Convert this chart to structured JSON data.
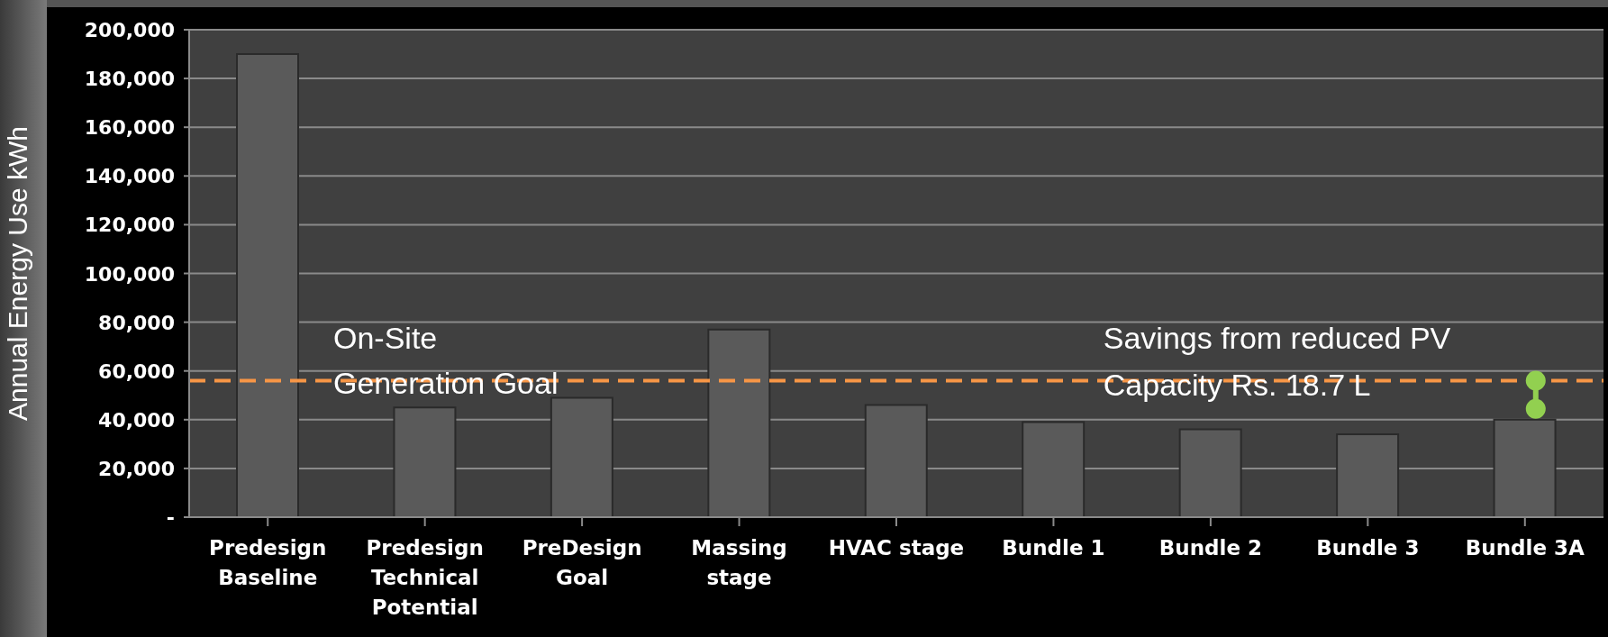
{
  "chart_data": {
    "type": "bar",
    "ylabel": "Annual Energy Use kWh",
    "categories": [
      "Predesign Baseline",
      "Predesign Technical Potential",
      "PreDesign Goal",
      "Massing stage",
      "HVAC stage",
      "Bundle 1",
      "Bundle 2",
      "Bundle 3",
      "Bundle 3A"
    ],
    "values": [
      190000,
      45000,
      49000,
      77000,
      46000,
      39000,
      36000,
      34000,
      40000
    ],
    "color": "#5a5a5a",
    "ylim": [
      0,
      200000
    ],
    "yticks": [
      {
        "value": 0,
        "label": "-"
      },
      {
        "value": 20000,
        "label": "20,000"
      },
      {
        "value": 40000,
        "label": "40,000"
      },
      {
        "value": 60000,
        "label": "60,000"
      },
      {
        "value": 80000,
        "label": "80,000"
      },
      {
        "value": 100000,
        "label": "100,000"
      },
      {
        "value": 120000,
        "label": "120,000"
      },
      {
        "value": 140000,
        "label": "140,000"
      },
      {
        "value": 160000,
        "label": "160,000"
      },
      {
        "value": 180000,
        "label": "180,000"
      },
      {
        "value": 200000,
        "label": "200,000"
      }
    ],
    "grid": "y",
    "ref_lines": [
      {
        "axis": "y",
        "value": 56000,
        "label": "On-Site Generation Goal",
        "color": "#f79646",
        "line_style": "dashed"
      }
    ],
    "annotations": [
      "Savings from reduced PV Capacity Rs. 18.7 L"
    ]
  }
}
